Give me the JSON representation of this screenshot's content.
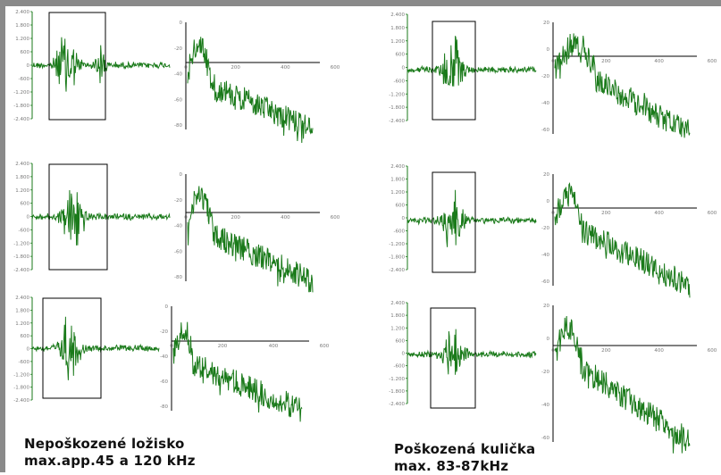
{
  "captions": {
    "undamaged": {
      "line1": "Nepoškozené ložisko",
      "line2": "max.app.45 a 120 kHz"
    },
    "damaged": {
      "line1": "Poškozená kulička",
      "line2": "max. 83-87kHz"
    }
  },
  "colors": {
    "trace": "#1a7a1a",
    "frame": "#000000",
    "tick_text": "#7a7a7a",
    "bars": "#8a8a8a"
  },
  "chart_data": [
    {
      "type": "line",
      "panel": "time-signal",
      "group": "undamaged",
      "row": 1,
      "ytick_labels": [
        "2.400",
        "1.800",
        "1.200",
        "600",
        "0",
        "-600",
        "-1.200",
        "-1.800",
        "-2.400"
      ],
      "bursts": [
        0.25,
        0.5
      ]
    },
    {
      "type": "line",
      "panel": "spectrum",
      "group": "undamaged",
      "row": 1,
      "ytick_labels": [
        "0",
        "-20",
        "-40",
        "-60",
        "-80"
      ],
      "xtick_labels": [
        "0",
        "200",
        "400",
        "600"
      ]
    },
    {
      "type": "line",
      "panel": "time-signal",
      "group": "undamaged",
      "row": 2,
      "ytick_labels": [
        "2.400",
        "1.800",
        "1.200",
        "600",
        "0",
        "-600",
        "-1.200",
        "-1.800",
        "-2.400"
      ],
      "bursts": [
        0.3
      ]
    },
    {
      "type": "line",
      "panel": "spectrum",
      "group": "undamaged",
      "row": 2,
      "ytick_labels": [
        "0",
        "-20",
        "-40",
        "-60",
        "-80"
      ],
      "xtick_labels": [
        "0",
        "200",
        "400",
        "600"
      ]
    },
    {
      "type": "line",
      "panel": "time-signal",
      "group": "undamaged",
      "row": 3,
      "ytick_labels": [
        "2.400",
        "1.800",
        "1.200",
        "600",
        "0",
        "-600",
        "-1.200",
        "-1.800",
        "-2.400"
      ],
      "bursts": [
        0.3
      ]
    },
    {
      "type": "line",
      "panel": "spectrum",
      "group": "undamaged",
      "row": 3,
      "ytick_labels": [
        "0",
        "-20",
        "-40",
        "-60",
        "-80"
      ],
      "xtick_labels": [
        "0",
        "200",
        "400",
        "600"
      ]
    },
    {
      "type": "line",
      "panel": "time-signal",
      "group": "damaged",
      "row": 1,
      "ytick_labels": [
        "2.400",
        "1.800",
        "1.200",
        "600",
        "0",
        "-600",
        "-1.200",
        "-1.800",
        "-2.400"
      ],
      "bursts": [
        0.35
      ]
    },
    {
      "type": "line",
      "panel": "spectrum",
      "group": "damaged",
      "row": 1,
      "ytick_labels": [
        "20",
        "0",
        "-20",
        "-40",
        "-60"
      ],
      "xtick_labels": [
        "0",
        "200",
        "400",
        "600"
      ]
    },
    {
      "type": "line",
      "panel": "time-signal",
      "group": "damaged",
      "row": 2,
      "ytick_labels": [
        "2.400",
        "1.800",
        "1.200",
        "600",
        "0",
        "-600",
        "-1.200",
        "-1.800",
        "-2.400"
      ],
      "bursts": [
        0.35
      ]
    },
    {
      "type": "line",
      "panel": "spectrum",
      "group": "damaged",
      "row": 2,
      "ytick_labels": [
        "20",
        "0",
        "-20",
        "-40",
        "-60"
      ],
      "xtick_labels": [
        "0",
        "200",
        "400",
        "600"
      ]
    },
    {
      "type": "line",
      "panel": "time-signal",
      "group": "damaged",
      "row": 3,
      "ytick_labels": [
        "2.400",
        "1.800",
        "1.200",
        "600",
        "0",
        "-600",
        "-1.200",
        "-1.800",
        "-2.400"
      ],
      "bursts": [
        0.35
      ]
    },
    {
      "type": "line",
      "panel": "spectrum",
      "group": "damaged",
      "row": 3,
      "ytick_labels": [
        "20",
        "0",
        "-20",
        "-40",
        "-60"
      ],
      "xtick_labels": [
        "0",
        "200",
        "400",
        "600"
      ]
    }
  ]
}
